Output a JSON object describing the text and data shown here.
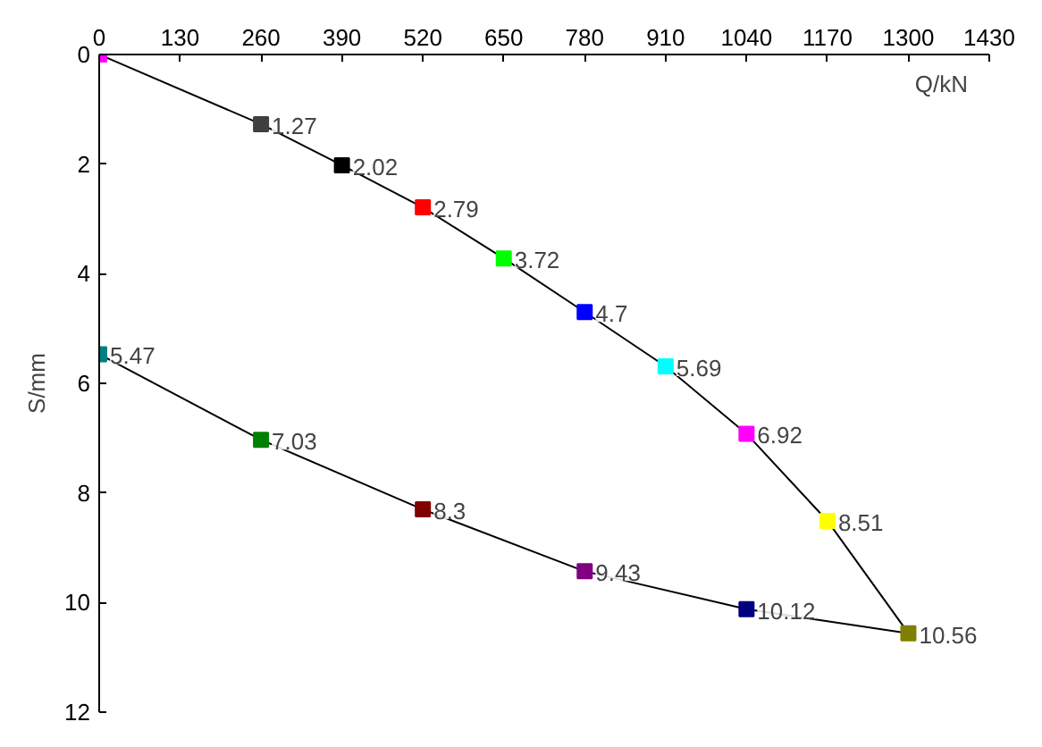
{
  "chart_data": {
    "type": "line",
    "xlabel": "Q/kN",
    "ylabel": "S/mm",
    "x": [
      0,
      260,
      390,
      520,
      650,
      780,
      910,
      1040,
      1170,
      1300,
      1040,
      780,
      520,
      260,
      0
    ],
    "series": [
      {
        "color": "#000000",
        "values": [
          0,
          1.27,
          2.02,
          2.79,
          3.72,
          4.7,
          5.69,
          6.92,
          8.51,
          10.56,
          10.12,
          9.43,
          8.3,
          7.03,
          5.47
        ],
        "colors": [
          "#ff00ff",
          "#404040",
          "#000000",
          "#ff0000",
          "#00ff00",
          "#0000ff",
          "#00ffff",
          "#ff00ff",
          "#ffff00",
          "#808000",
          "#000080",
          "#800080",
          "#800000",
          "#008000",
          "#008080"
        ],
        "value_labels": [
          null,
          "1.27",
          "2.02",
          "2.79",
          "3.72",
          "4.7",
          "5.69",
          "6.92",
          "8.51",
          "10.56",
          "10.12",
          "9.43",
          "8.3",
          "7.03",
          "5.47"
        ]
      }
    ],
    "xlim": [
      0,
      1430
    ],
    "xticks": [
      0,
      130,
      260,
      390,
      520,
      650,
      780,
      910,
      1040,
      1170,
      1300,
      1430
    ],
    "ylim": [
      12,
      0
    ],
    "yticks": [
      0,
      2,
      4,
      6,
      8,
      10,
      12
    ],
    "marker": "square",
    "grid": false
  }
}
